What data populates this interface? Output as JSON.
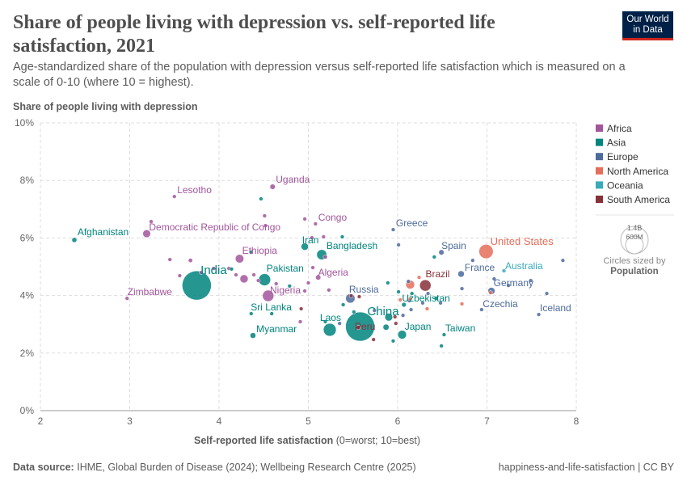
{
  "header": {
    "title": "Share of people living with depression vs. self-reported life satisfaction, 2021",
    "subtitle": "Age-standardized share of the population with depression versus self-reported life satisfaction which is measured on a scale of 0-10 (where 10 = highest).",
    "logo_line1": "Our World",
    "logo_line2": "in Data"
  },
  "footer": {
    "source_label": "Data source:",
    "source": "IHME, Global Burden of Disease (2024); Wellbeing Research Centre (2025)",
    "right": "happiness-and-life-satisfaction | CC BY"
  },
  "colors": {
    "Africa": "#a2559c",
    "Asia": "#00847e",
    "Europe": "#4c6a9c",
    "North America": "#e56e5a",
    "Oceania": "#38aaba",
    "South America": "#883039"
  },
  "size_legend": {
    "big": "1.4B",
    "small": "600M",
    "caption": "Circles sized by",
    "variable": "Population"
  },
  "chart_data": {
    "type": "scatter",
    "title": "Share of people living with depression vs. self-reported life satisfaction, 2021",
    "xlabel_bold": "Self-reported life satisfaction",
    "xlabel_rest": "(0=worst; 10=best)",
    "ylabel": "Share of people living with depression",
    "xlim": [
      2,
      8
    ],
    "ylim": [
      0,
      10
    ],
    "xticks": [
      2,
      3,
      4,
      5,
      6,
      7,
      8
    ],
    "yticks": [
      {
        "v": 0,
        "l": "0%"
      },
      {
        "v": 2,
        "l": "2%"
      },
      {
        "v": 4,
        "l": "4%"
      },
      {
        "v": 6,
        "l": "6%"
      },
      {
        "v": 8,
        "l": "8%"
      },
      {
        "v": 10,
        "l": "10%"
      }
    ],
    "grid": true,
    "legend_placement": "right",
    "legend": [
      "Africa",
      "Asia",
      "Europe",
      "North America",
      "Oceania",
      "South America"
    ],
    "size_variable": "Population",
    "points": [
      {
        "n": "Afghanistan",
        "r": "Asia",
        "x": 2.38,
        "y": 5.93,
        "p": 41,
        "l": true
      },
      {
        "n": "Lesotho",
        "r": "Africa",
        "x": 3.5,
        "y": 7.44,
        "p": 2,
        "l": true
      },
      {
        "n": "Uganda",
        "r": "Africa",
        "x": 4.6,
        "y": 7.78,
        "p": 47,
        "l": true
      },
      {
        "n": "Democratic Republic of Congo",
        "r": "Africa",
        "x": 3.19,
        "y": 6.15,
        "p": 100,
        "l": true
      },
      {
        "n": "Congo",
        "r": "Africa",
        "x": 5.08,
        "y": 6.49,
        "p": 6,
        "l": true
      },
      {
        "n": "Greece",
        "r": "Europe",
        "x": 5.95,
        "y": 6.29,
        "p": 10,
        "l": true
      },
      {
        "n": "Iran",
        "r": "Asia",
        "x": 4.96,
        "y": 5.7,
        "p": 88,
        "l": true
      },
      {
        "n": "Bangladesh",
        "r": "Asia",
        "x": 5.15,
        "y": 5.42,
        "p": 170,
        "l": true
      },
      {
        "n": "Spain",
        "r": "Europe",
        "x": 6.49,
        "y": 5.5,
        "p": 47,
        "l": true
      },
      {
        "n": "United States",
        "r": "North America",
        "x": 6.99,
        "y": 5.53,
        "p": 335,
        "l": true
      },
      {
        "n": "France",
        "r": "Europe",
        "x": 6.71,
        "y": 4.75,
        "p": 68,
        "l": true
      },
      {
        "n": "Australia",
        "r": "Oceania",
        "x": 7.19,
        "y": 4.86,
        "p": 26,
        "l": true
      },
      {
        "n": "Ethiopia",
        "r": "Africa",
        "x": 4.23,
        "y": 5.28,
        "p": 120,
        "l": true
      },
      {
        "n": "India",
        "r": "Asia",
        "x": 3.75,
        "y": 4.35,
        "p": 1410,
        "l": true
      },
      {
        "n": "Pakistan",
        "r": "Asia",
        "x": 4.51,
        "y": 4.55,
        "p": 240,
        "l": true
      },
      {
        "n": "Algeria",
        "r": "Africa",
        "x": 5.11,
        "y": 4.63,
        "p": 45,
        "l": true
      },
      {
        "n": "Brazil",
        "r": "South America",
        "x": 6.31,
        "y": 4.35,
        "p": 215,
        "l": true
      },
      {
        "n": "Germany",
        "r": "Europe",
        "x": 7.05,
        "y": 4.16,
        "p": 83,
        "l": true
      },
      {
        "n": "Nigeria",
        "r": "Africa",
        "x": 4.55,
        "y": 3.99,
        "p": 215,
        "l": true
      },
      {
        "n": "Zimbabwe",
        "r": "Africa",
        "x": 2.97,
        "y": 3.9,
        "p": 16,
        "l": true
      },
      {
        "n": "Russia",
        "r": "Europe",
        "x": 5.47,
        "y": 3.9,
        "p": 145,
        "l": true
      },
      {
        "n": "Uzbekistan",
        "r": "Asia",
        "x": 6.07,
        "y": 3.68,
        "p": 35,
        "l": true
      },
      {
        "n": "Czechia",
        "r": "Europe",
        "x": 6.94,
        "y": 3.51,
        "p": 10,
        "l": true
      },
      {
        "n": "Iceland",
        "r": "Europe",
        "x": 7.58,
        "y": 3.34,
        "p": 0.4,
        "l": true
      },
      {
        "n": "China",
        "r": "Asia",
        "x": 5.58,
        "y": 2.92,
        "p": 1410,
        "l": true
      },
      {
        "n": "Peru",
        "r": "South America",
        "x": 5.56,
        "y": 2.89,
        "p": 34,
        "l": true
      },
      {
        "n": "Sri Lanka",
        "r": "Asia",
        "x": 4.36,
        "y": 3.37,
        "p": 22,
        "l": true
      },
      {
        "n": "Laos",
        "r": "Asia",
        "x": 5.19,
        "y": 3.09,
        "p": 7,
        "l": true
      },
      {
        "n": "Japan",
        "r": "Asia",
        "x": 6.05,
        "y": 2.64,
        "p": 125,
        "l": true
      },
      {
        "n": "Taiwan",
        "r": "Asia",
        "x": 6.52,
        "y": 2.64,
        "p": 23,
        "l": true
      },
      {
        "n": "Myanmar",
        "r": "Asia",
        "x": 4.38,
        "y": 2.61,
        "p": 54,
        "l": true
      },
      {
        "n": "",
        "r": "Asia",
        "x": 5.24,
        "y": 2.81,
        "p": 275
      },
      {
        "n": "",
        "r": "North America",
        "x": 6.14,
        "y": 4.38,
        "p": 127
      },
      {
        "n": "",
        "r": "Africa",
        "x": 4.28,
        "y": 4.58,
        "p": 110
      },
      {
        "n": "",
        "r": "Asia",
        "x": 5.9,
        "y": 3.25,
        "p": 100
      },
      {
        "n": "",
        "r": "Asia",
        "x": 5.87,
        "y": 2.9,
        "p": 60
      },
      {
        "n": "",
        "r": "Africa",
        "x": 3.24,
        "y": 6.57,
        "p": 5
      },
      {
        "n": "",
        "r": "Africa",
        "x": 3.45,
        "y": 5.25,
        "p": 5
      },
      {
        "n": "",
        "r": "Africa",
        "x": 3.68,
        "y": 5.22,
        "p": 30
      },
      {
        "n": "",
        "r": "Africa",
        "x": 3.56,
        "y": 4.69,
        "p": 5
      },
      {
        "n": "",
        "r": "Africa",
        "x": 4.11,
        "y": 4.94,
        "p": 5
      },
      {
        "n": "",
        "r": "Africa",
        "x": 4.51,
        "y": 6.77,
        "p": 5
      },
      {
        "n": "",
        "r": "Africa",
        "x": 4.52,
        "y": 6.43,
        "p": 5
      },
      {
        "n": "",
        "r": "Africa",
        "x": 4.96,
        "y": 6.66,
        "p": 5
      },
      {
        "n": "",
        "r": "Africa",
        "x": 5.04,
        "y": 6.01,
        "p": 10
      },
      {
        "n": "",
        "r": "Africa",
        "x": 5.17,
        "y": 6.04,
        "p": 5
      },
      {
        "n": "",
        "r": "Africa",
        "x": 5.05,
        "y": 4.97,
        "p": 10
      },
      {
        "n": "",
        "r": "Africa",
        "x": 5.0,
        "y": 4.44,
        "p": 10
      },
      {
        "n": "",
        "r": "Africa",
        "x": 4.96,
        "y": 4.16,
        "p": 5
      },
      {
        "n": "",
        "r": "Africa",
        "x": 5.19,
        "y": 5.34,
        "p": 30
      },
      {
        "n": "",
        "r": "Africa",
        "x": 5.23,
        "y": 4.19,
        "p": 10
      },
      {
        "n": "",
        "r": "Africa",
        "x": 4.91,
        "y": 3.09,
        "p": 5
      },
      {
        "n": "",
        "r": "Africa",
        "x": 3.8,
        "y": 4.8,
        "p": 5
      },
      {
        "n": "",
        "r": "Africa",
        "x": 3.94,
        "y": 4.94,
        "p": 5
      },
      {
        "n": "",
        "r": "Africa",
        "x": 4.64,
        "y": 4.41,
        "p": 10
      },
      {
        "n": "",
        "r": "Africa",
        "x": 4.19,
        "y": 4.72,
        "p": 5
      },
      {
        "n": "",
        "r": "Africa",
        "x": 4.39,
        "y": 4.72,
        "p": 5
      },
      {
        "n": "",
        "r": "Africa",
        "x": 4.44,
        "y": 4.52,
        "p": 5
      },
      {
        "n": "",
        "r": "Asia",
        "x": 4.47,
        "y": 7.36,
        "p": 3
      },
      {
        "n": "",
        "r": "Asia",
        "x": 5.38,
        "y": 6.04,
        "p": 5
      },
      {
        "n": "",
        "r": "Asia",
        "x": 4.36,
        "y": 5.51,
        "p": 5
      },
      {
        "n": "",
        "r": "Asia",
        "x": 4.14,
        "y": 4.92,
        "p": 5
      },
      {
        "n": "",
        "r": "Asia",
        "x": 5.39,
        "y": 3.68,
        "p": 5
      },
      {
        "n": "",
        "r": "Asia",
        "x": 5.51,
        "y": 3.43,
        "p": 5
      },
      {
        "n": "",
        "r": "Asia",
        "x": 5.95,
        "y": 2.42,
        "p": 10
      },
      {
        "n": "",
        "r": "Asia",
        "x": 6.49,
        "y": 2.25,
        "p": 3
      },
      {
        "n": "",
        "r": "Asia",
        "x": 6.41,
        "y": 5.34,
        "p": 3
      },
      {
        "n": "",
        "r": "Asia",
        "x": 6.01,
        "y": 4.13,
        "p": 5
      },
      {
        "n": "",
        "r": "Asia",
        "x": 5.89,
        "y": 4.44,
        "p": 5
      },
      {
        "n": "",
        "r": "Asia",
        "x": 6.43,
        "y": 3.9,
        "p": 5
      },
      {
        "n": "",
        "r": "Asia",
        "x": 4.59,
        "y": 3.37,
        "p": 5
      },
      {
        "n": "",
        "r": "Asia",
        "x": 4.79,
        "y": 4.33,
        "p": 5
      },
      {
        "n": "",
        "r": "Asia",
        "x": 6.16,
        "y": 4.07,
        "p": 5
      },
      {
        "n": "",
        "r": "Europe",
        "x": 6.01,
        "y": 5.76,
        "p": 5
      },
      {
        "n": "",
        "r": "Europe",
        "x": 6.34,
        "y": 4.07,
        "p": 5
      },
      {
        "n": "",
        "r": "Europe",
        "x": 6.12,
        "y": 4.49,
        "p": 5
      },
      {
        "n": "",
        "r": "Europe",
        "x": 6.72,
        "y": 4.24,
        "p": 5
      },
      {
        "n": "",
        "r": "Europe",
        "x": 6.84,
        "y": 5.22,
        "p": 5
      },
      {
        "n": "",
        "r": "Europe",
        "x": 7.24,
        "y": 4.35,
        "p": 5
      },
      {
        "n": "",
        "r": "Europe",
        "x": 7.49,
        "y": 4.52,
        "p": 5
      },
      {
        "n": "",
        "r": "Europe",
        "x": 7.67,
        "y": 4.07,
        "p": 5
      },
      {
        "n": "",
        "r": "Europe",
        "x": 7.85,
        "y": 5.22,
        "p": 5
      },
      {
        "n": "",
        "r": "Europe",
        "x": 7.08,
        "y": 4.58,
        "p": 5
      },
      {
        "n": "",
        "r": "Europe",
        "x": 6.28,
        "y": 3.74,
        "p": 5
      },
      {
        "n": "",
        "r": "Europe",
        "x": 6.15,
        "y": 3.51,
        "p": 5
      },
      {
        "n": "",
        "r": "Europe",
        "x": 5.74,
        "y": 3.48,
        "p": 5
      },
      {
        "n": "",
        "r": "Europe",
        "x": 6.13,
        "y": 3.82,
        "p": 5
      },
      {
        "n": "",
        "r": "Europe",
        "x": 6.06,
        "y": 3.31,
        "p": 5
      },
      {
        "n": "",
        "r": "Europe",
        "x": 5.35,
        "y": 3.03,
        "p": 5
      },
      {
        "n": "",
        "r": "Europe",
        "x": 6.48,
        "y": 3.74,
        "p": 5
      },
      {
        "n": "",
        "r": "North America",
        "x": 6.24,
        "y": 4.63,
        "p": 3
      },
      {
        "n": "",
        "r": "North America",
        "x": 6.14,
        "y": 3.88,
        "p": 3
      },
      {
        "n": "",
        "r": "North America",
        "x": 6.72,
        "y": 3.71,
        "p": 3
      },
      {
        "n": "",
        "r": "North America",
        "x": 7.04,
        "y": 4.1,
        "p": 5
      },
      {
        "n": "",
        "r": "North America",
        "x": 6.03,
        "y": 3.85,
        "p": 3
      },
      {
        "n": "",
        "r": "North America",
        "x": 6.33,
        "y": 3.54,
        "p": 3
      },
      {
        "n": "",
        "r": "South America",
        "x": 5.73,
        "y": 2.47,
        "p": 10
      },
      {
        "n": "",
        "r": "South America",
        "x": 5.98,
        "y": 3.03,
        "p": 20
      },
      {
        "n": "",
        "r": "South America",
        "x": 5.97,
        "y": 3.26,
        "p": 10
      },
      {
        "n": "",
        "r": "South America",
        "x": 5.57,
        "y": 3.96,
        "p": 5
      },
      {
        "n": "",
        "r": "South America",
        "x": 4.92,
        "y": 3.54,
        "p": 5
      },
      {
        "n": "",
        "r": "South America",
        "x": 5.48,
        "y": 3.99,
        "p": 5
      }
    ]
  }
}
